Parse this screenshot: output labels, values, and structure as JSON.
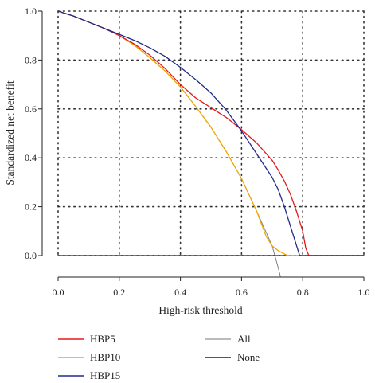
{
  "chart_data": {
    "type": "line",
    "xlabel": "High-risk threshold",
    "ylabel": "Standardized net benefit",
    "xlim": [
      0.0,
      1.0
    ],
    "ylim": [
      0.0,
      1.0
    ],
    "x_ticks": [
      "0.0",
      "0.2",
      "0.4",
      "0.6",
      "0.8",
      "1.0"
    ],
    "y_ticks": [
      "0.0",
      "0.2",
      "0.4",
      "0.6",
      "0.8",
      "1.0"
    ],
    "grid": "dotted",
    "legend_position": "bottom",
    "series": [
      {
        "name": "HBP5",
        "color": "#e31a1c",
        "width": 1.3,
        "x": [
          0.0,
          0.05,
          0.1,
          0.15,
          0.2,
          0.25,
          0.3,
          0.35,
          0.4,
          0.45,
          0.5,
          0.55,
          0.6,
          0.65,
          0.7,
          0.72,
          0.74,
          0.76,
          0.78,
          0.8,
          0.81,
          0.82,
          0.9,
          1.0
        ],
        "y": [
          1.0,
          0.98,
          0.955,
          0.93,
          0.9,
          0.865,
          0.82,
          0.765,
          0.7,
          0.645,
          0.605,
          0.565,
          0.515,
          0.46,
          0.39,
          0.35,
          0.305,
          0.25,
          0.18,
          0.1,
          0.03,
          0.0,
          0.0,
          0.0
        ]
      },
      {
        "name": "HBP10",
        "color": "#f0a500",
        "width": 1.3,
        "x": [
          0.0,
          0.05,
          0.1,
          0.15,
          0.2,
          0.25,
          0.3,
          0.35,
          0.4,
          0.45,
          0.5,
          0.55,
          0.6,
          0.65,
          0.68,
          0.7,
          0.72,
          0.75,
          0.78,
          0.82,
          0.9,
          1.0
        ],
        "y": [
          1.0,
          0.98,
          0.955,
          0.93,
          0.9,
          0.86,
          0.81,
          0.755,
          0.69,
          0.61,
          0.525,
          0.425,
          0.315,
          0.18,
          0.08,
          0.04,
          0.02,
          0.0,
          0.0,
          0.0,
          0.0,
          0.0
        ]
      },
      {
        "name": "HBP15",
        "color": "#1f2a8a",
        "width": 1.3,
        "x": [
          0.0,
          0.05,
          0.1,
          0.15,
          0.2,
          0.25,
          0.3,
          0.35,
          0.4,
          0.45,
          0.5,
          0.55,
          0.6,
          0.65,
          0.7,
          0.72,
          0.74,
          0.76,
          0.78,
          0.79,
          0.8,
          0.9,
          1.0
        ],
        "y": [
          1.0,
          0.98,
          0.955,
          0.93,
          0.905,
          0.88,
          0.85,
          0.815,
          0.77,
          0.72,
          0.665,
          0.595,
          0.51,
          0.415,
          0.32,
          0.27,
          0.2,
          0.12,
          0.04,
          0.0,
          0.0,
          0.0,
          0.0
        ]
      },
      {
        "name": "All",
        "color": "#777777",
        "width": 0.9,
        "x": [
          0.0,
          0.05,
          0.1,
          0.15,
          0.2,
          0.25,
          0.3,
          0.35,
          0.4,
          0.45,
          0.5,
          0.55,
          0.6,
          0.65,
          0.7,
          0.72,
          0.74
        ],
        "y": [
          1.0,
          0.98,
          0.955,
          0.93,
          0.9,
          0.86,
          0.81,
          0.755,
          0.69,
          0.61,
          0.525,
          0.425,
          0.315,
          0.18,
          0.04,
          -0.05,
          -0.15
        ]
      },
      {
        "name": "None",
        "color": "#222222",
        "width": 1.2,
        "x": [
          0.0,
          1.0
        ],
        "y": [
          0.0,
          0.0
        ]
      }
    ]
  }
}
